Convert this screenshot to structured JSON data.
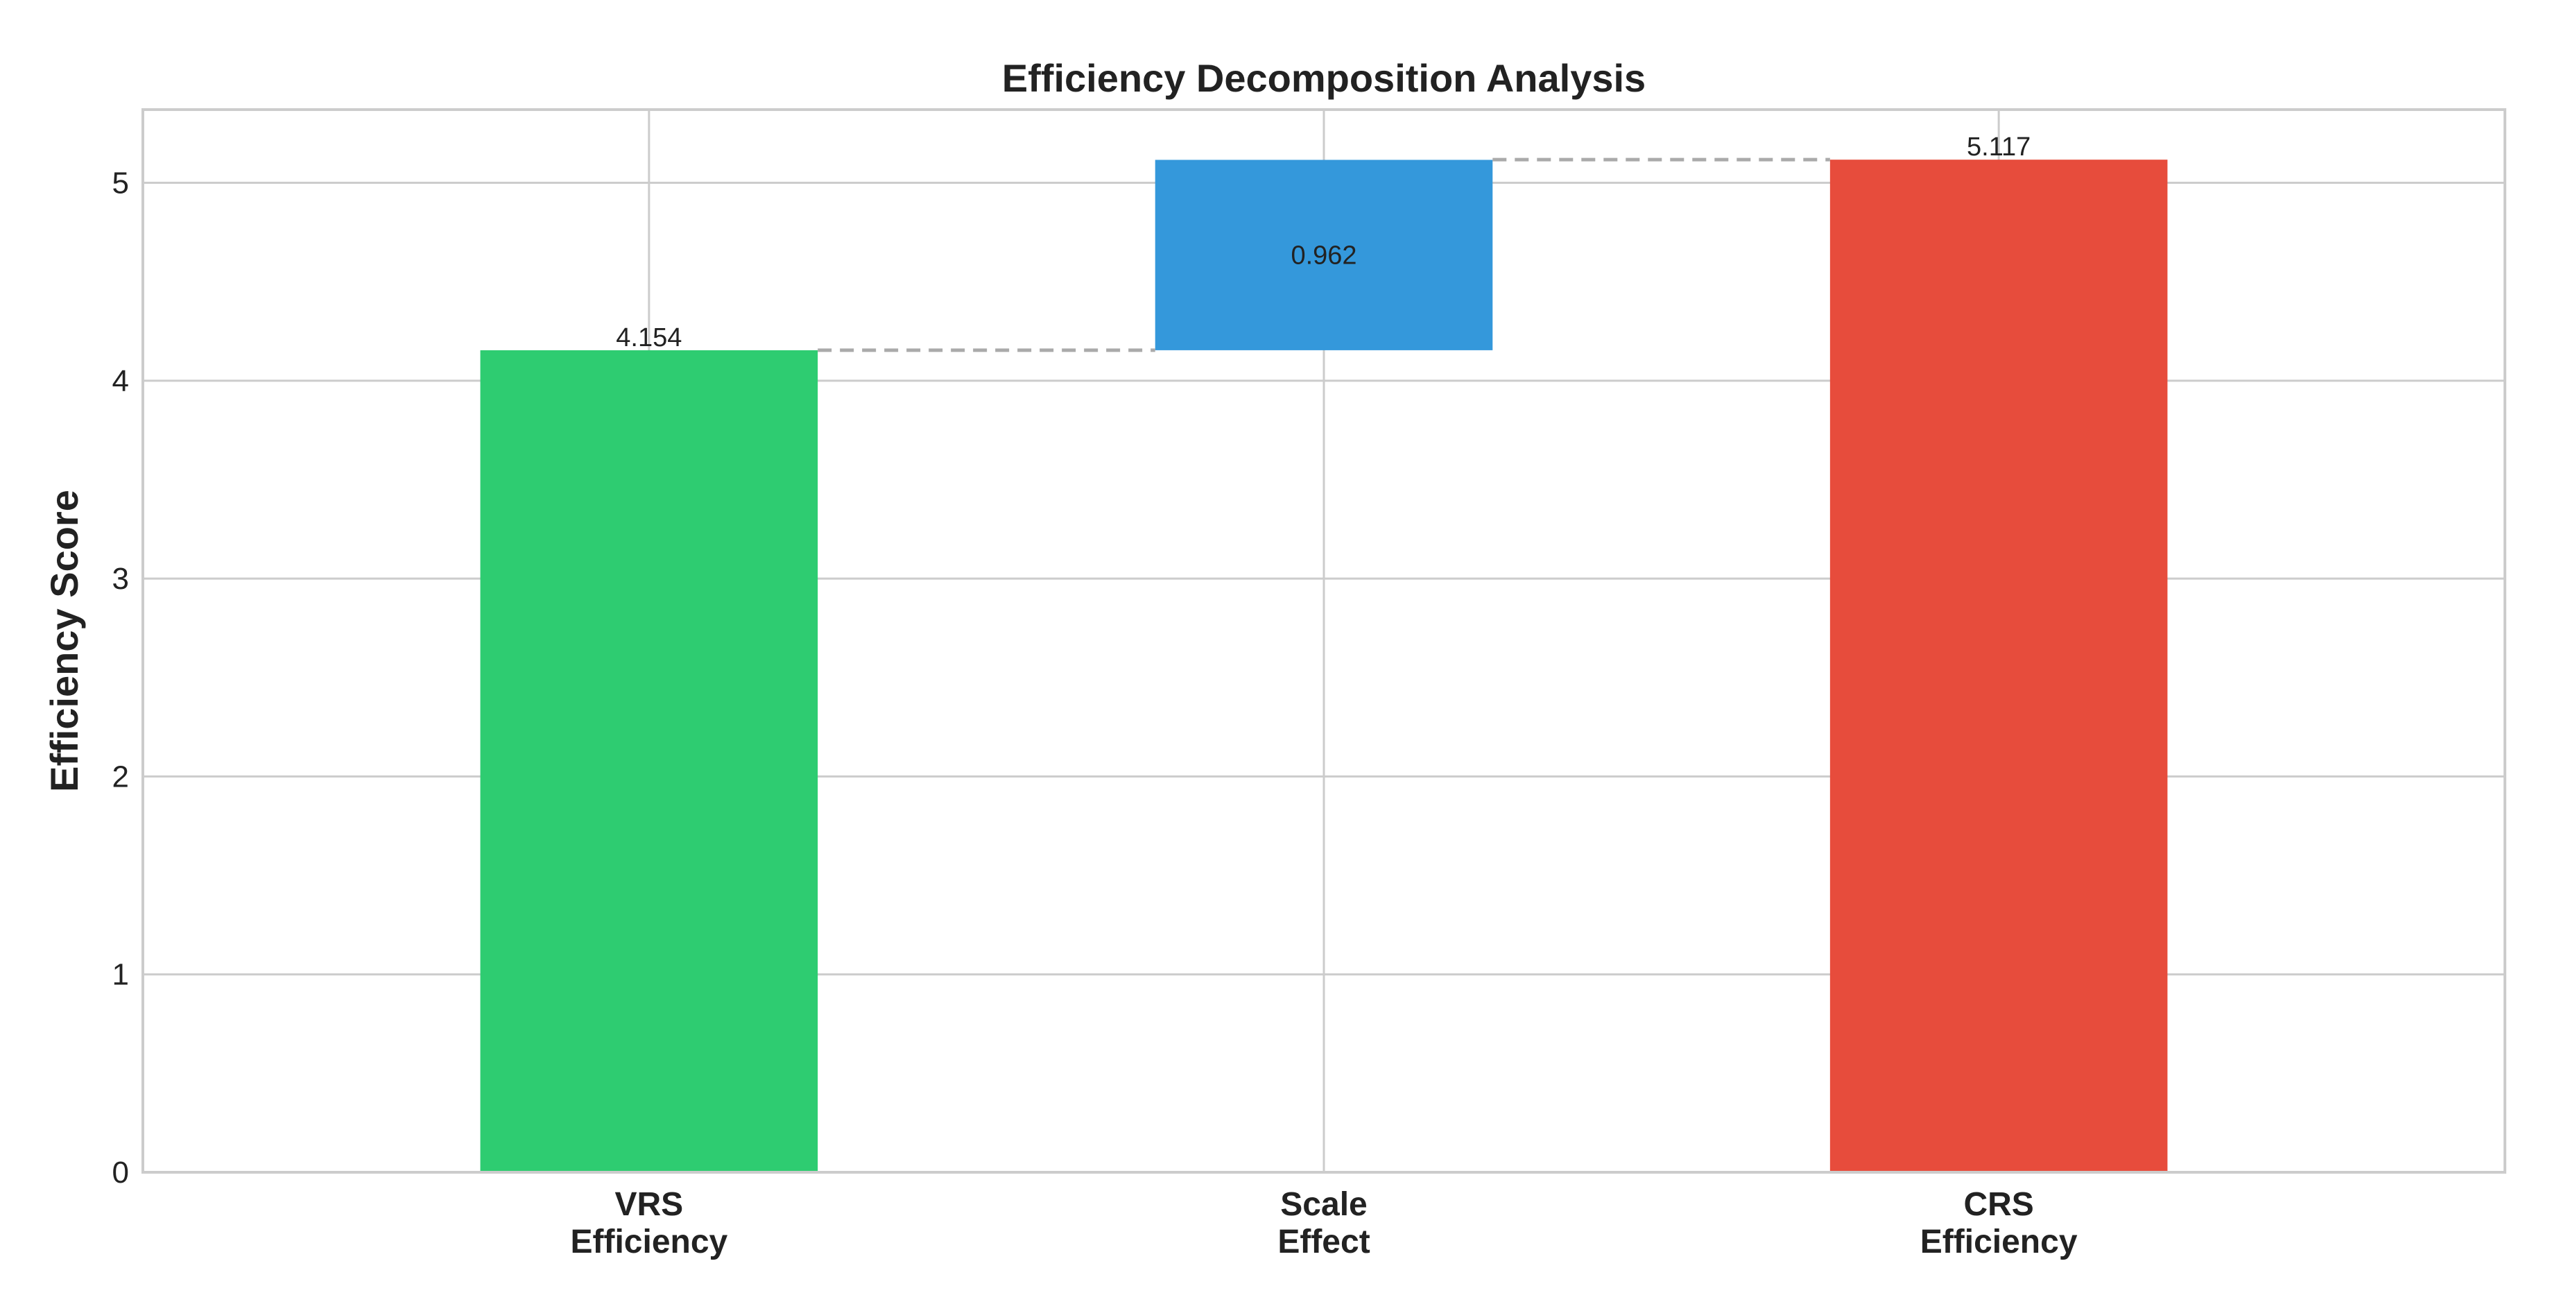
{
  "chart_data": {
    "type": "bar",
    "subtype": "waterfall",
    "title": "Efficiency Decomposition Analysis",
    "xlabel": "",
    "ylabel": "Efficiency Score",
    "ylim": [
      0,
      5.37
    ],
    "yticks": [
      0,
      1,
      2,
      3,
      4,
      5
    ],
    "grid": true,
    "categories": [
      [
        "VRS",
        "Efficiency"
      ],
      [
        "Scale",
        "Effect"
      ],
      [
        "CRS",
        "Efficiency"
      ]
    ],
    "bars": [
      {
        "bottom": 0,
        "value": 4.154,
        "label": "4.154",
        "label_position": "above",
        "color": "#2ecc71"
      },
      {
        "bottom": 4.154,
        "value": 0.962,
        "label": "0.962",
        "label_position": "inside",
        "color": "#3498db"
      },
      {
        "bottom": 0,
        "value": 5.117,
        "label": "5.117",
        "label_position": "above",
        "color": "#e74c3c"
      }
    ],
    "connectors": [
      {
        "from": 0,
        "to": 1,
        "y": 4.154
      },
      {
        "from": 1,
        "to": 2,
        "y": 5.117
      }
    ],
    "colors": {
      "grid": "#cccccc",
      "axis": "#cccccc",
      "connector": "#aaaaaa",
      "text": "#222222"
    }
  }
}
